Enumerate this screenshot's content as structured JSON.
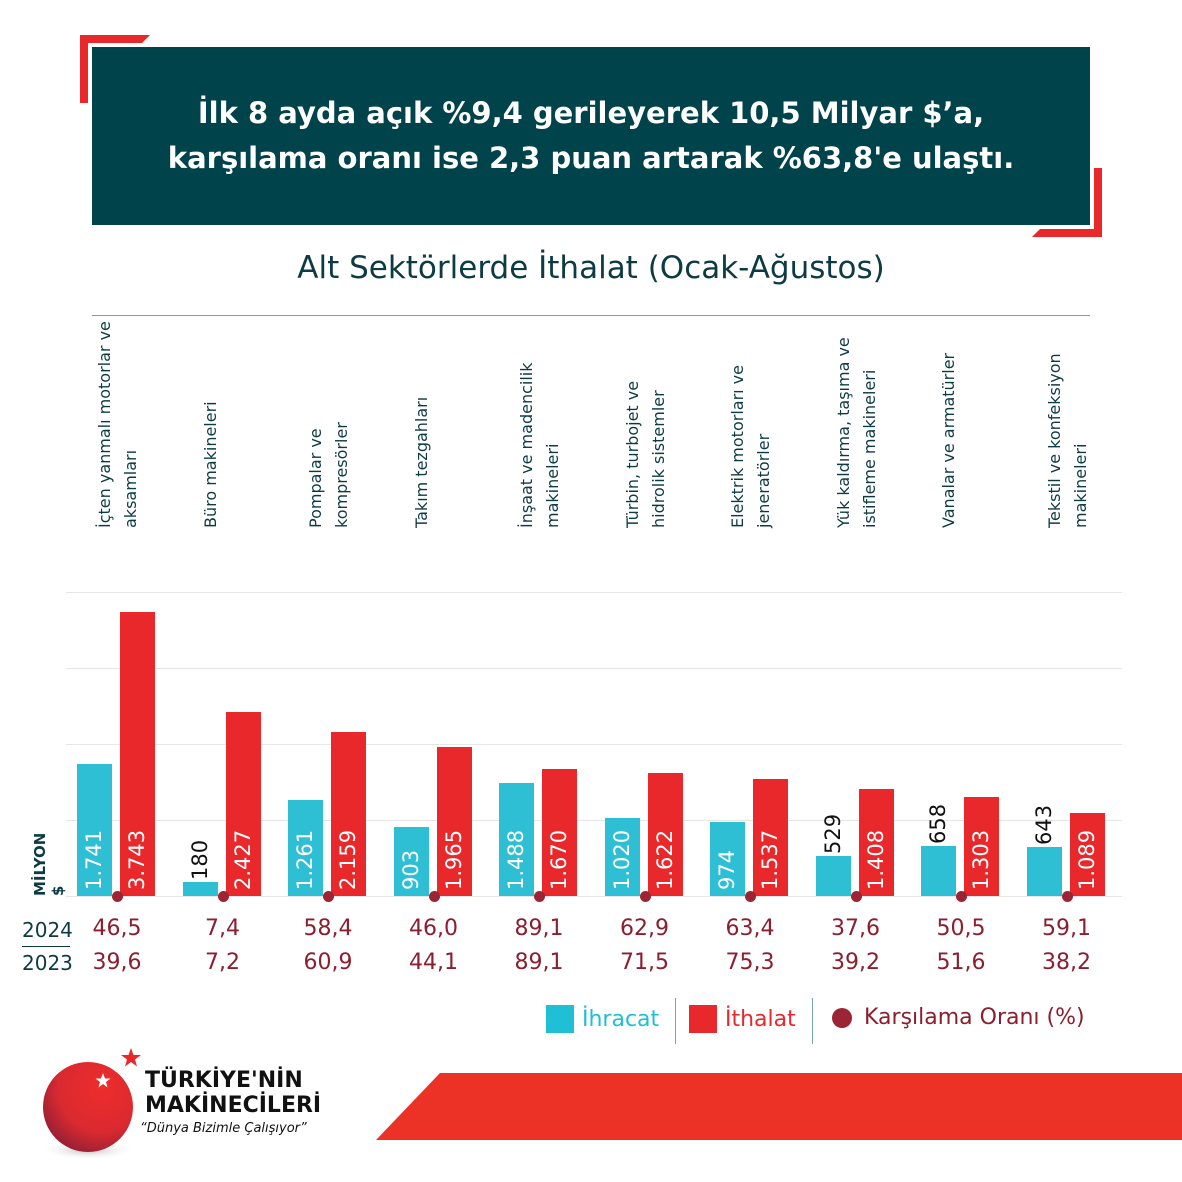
{
  "header": {
    "line1": "İlk 8 ayda açık %9,4 gerileyerek 10,5 Milyar $’a,",
    "line2": "karşılama oranı ise 2,3 puan artarak %63,8'e ulaştı."
  },
  "chart_data": {
    "type": "bar",
    "title": "Alt Sektörlerde İthalat (Ocak-Ağustos)",
    "ylabel": "MİLYON $",
    "ylim": [
      0,
      4000
    ],
    "grid": true,
    "legend": "bottom-right",
    "categories": [
      "İçten yanmalı motorlar ve aksamları",
      "Büro makineleri",
      "Pompalar ve kompresörler",
      "Takım tezgahları",
      "İnşaat ve madencilik makineleri",
      "Türbin, turbojet ve hidrolik sistemler",
      "Elektrik motorları ve jeneratörler",
      "Yük kaldırma, taşıma ve istifleme makineleri",
      "Vanalar ve armatürler",
      "Tekstil ve konfeksiyon makineleri"
    ],
    "series": [
      {
        "name": "İhracat",
        "color": "#2fbfd4",
        "values": [
          1741,
          180,
          1261,
          903,
          1488,
          1020,
          974,
          529,
          658,
          643
        ],
        "labels": [
          "1.741",
          "180",
          "1.261",
          "903",
          "1.488",
          "1.020",
          "974",
          "529",
          "658",
          "643"
        ]
      },
      {
        "name": "İthalat",
        "color": "#e8282b",
        "values": [
          3743,
          2427,
          2159,
          1965,
          1670,
          1622,
          1537,
          1408,
          1303,
          1089
        ],
        "labels": [
          "3.743",
          "2.427",
          "2.159",
          "1.965",
          "1.670",
          "1.622",
          "1.537",
          "1.408",
          "1.303",
          "1.089"
        ]
      }
    ],
    "coverage_ratio": {
      "name": "Karşılama Oranı (%)",
      "color": "#9b2435",
      "years": [
        "2024",
        "2023"
      ],
      "2024": [
        "46,5",
        "7,4",
        "58,4",
        "46,0",
        "89,1",
        "62,9",
        "63,4",
        "37,6",
        "50,5",
        "59,1"
      ],
      "2023": [
        "39,6",
        "7,2",
        "60,9",
        "44,1",
        "89,1",
        "71,5",
        "75,3",
        "39,2",
        "51,6",
        "38,2"
      ]
    }
  },
  "logo": {
    "line1": "TÜRKİYE'NİN",
    "line2": "MAKİNECİLERİ",
    "slogan": "“Dünya Bizimle Çalışıyor”"
  }
}
